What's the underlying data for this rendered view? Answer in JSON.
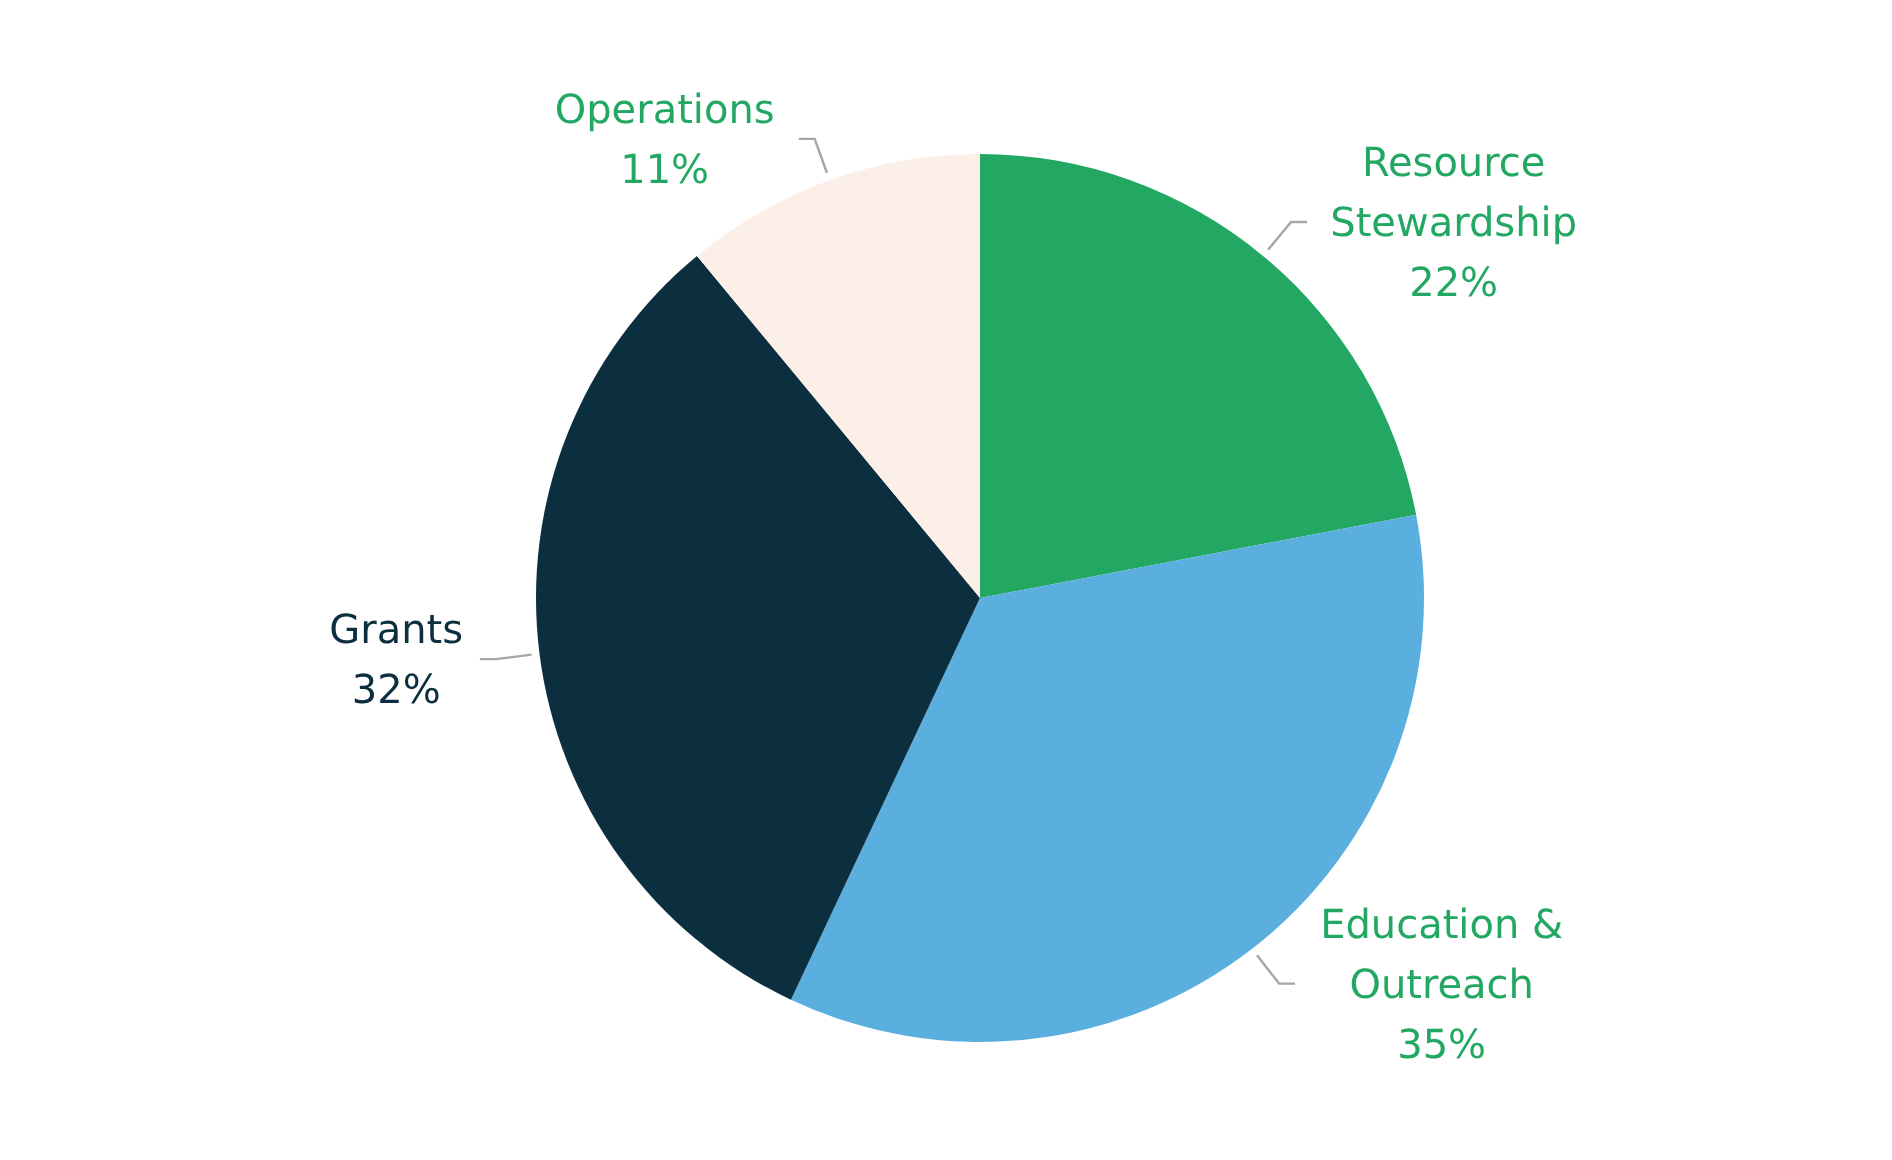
{
  "chart_data": {
    "type": "pie",
    "categories": [
      "Resource Stewardship",
      "Education & Outreach",
      "Grants",
      "Operations"
    ],
    "values": [
      22,
      35,
      32,
      11
    ],
    "value_labels": [
      "22%",
      "35%",
      "32%",
      "11%"
    ],
    "colors": [
      "#23a864",
      "#5aafdf",
      "#0c2f40",
      "#fcefe7"
    ],
    "legend": false
  }
}
